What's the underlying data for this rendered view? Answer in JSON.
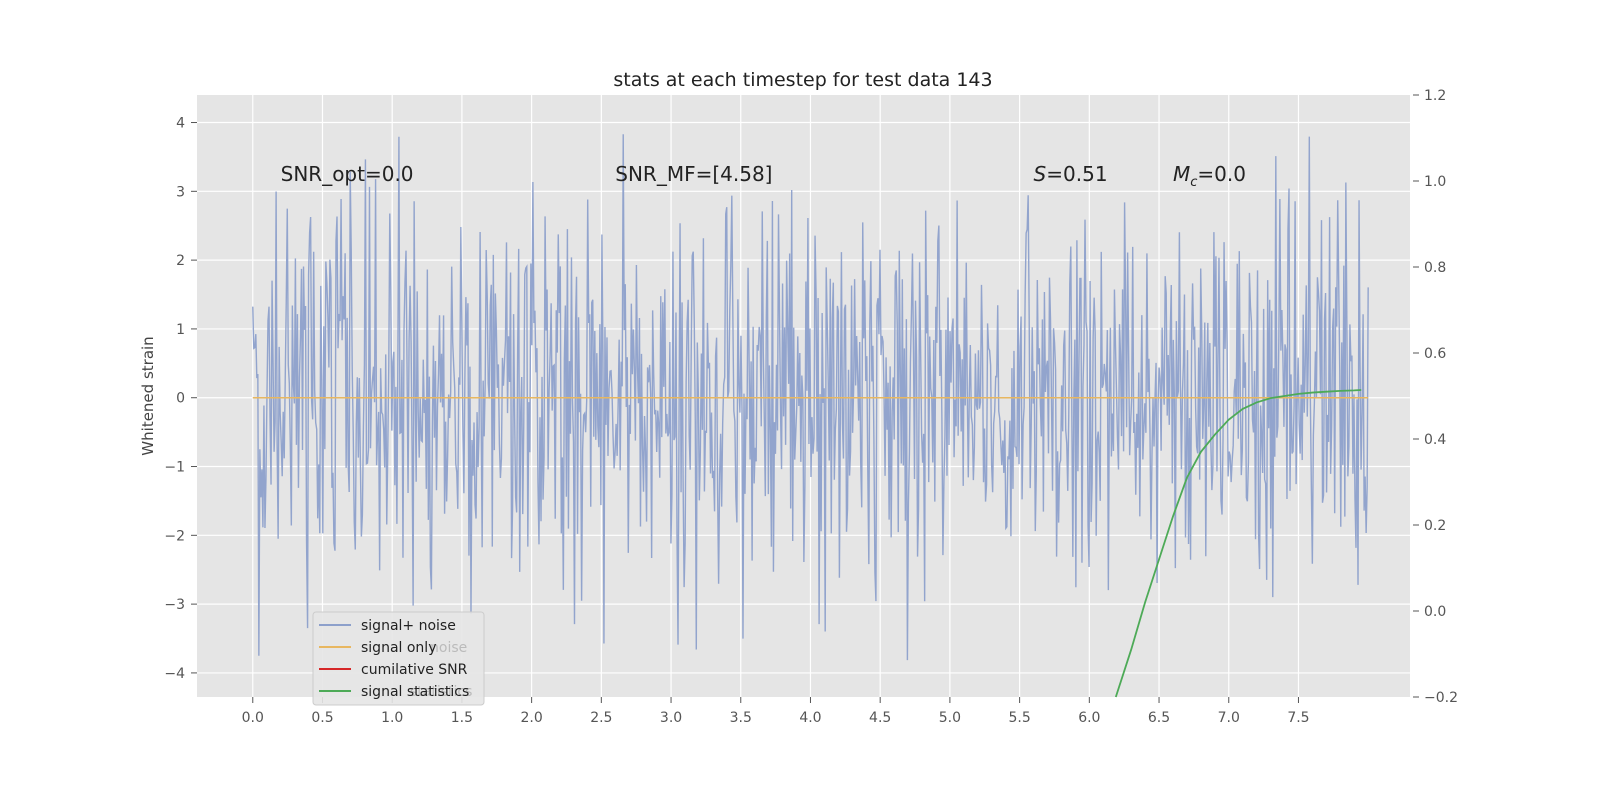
{
  "chart_data": {
    "type": "line",
    "title": "stats at each timestep for test data 143",
    "xlabel": "",
    "ylabel": "Whitened strain",
    "y2label": "",
    "xlim": [
      -0.4,
      8.3
    ],
    "ylim": [
      -4.35,
      4.4
    ],
    "y2lim": [
      -0.2,
      1.2
    ],
    "x_ticks": [
      0.0,
      0.5,
      1.0,
      1.5,
      2.0,
      2.5,
      3.0,
      3.5,
      4.0,
      4.5,
      5.0,
      5.5,
      6.0,
      6.5,
      7.0,
      7.5
    ],
    "y_ticks": [
      4,
      3,
      2,
      1,
      0,
      -1,
      -2,
      -3,
      -4
    ],
    "y2_ticks": [
      1.2,
      1.0,
      0.8,
      0.6,
      0.4,
      0.2,
      0.0,
      -0.2
    ],
    "grid": true,
    "legend_position": "lower-left",
    "series": [
      {
        "name": "signal+ noise",
        "axis": "left",
        "color": "#8da0cb",
        "kind": "noise",
        "x_range": [
          0.0,
          8.0
        ],
        "sample_count": 1100,
        "std": 1.0,
        "peak_max": 4.0,
        "peak_min": -3.98
      },
      {
        "name": "signal only",
        "axis": "left",
        "color": "#e8b760",
        "x": [
          0.0,
          8.0
        ],
        "y": [
          0.0,
          0.0
        ]
      },
      {
        "name": "cumilative SNR",
        "axis": "right",
        "color": "#d62728",
        "x": [],
        "y": []
      },
      {
        "name": "signal statistics",
        "axis": "right",
        "color": "#4daa57",
        "x": [
          6.19,
          6.3,
          6.4,
          6.5,
          6.6,
          6.7,
          6.8,
          6.9,
          7.0,
          7.1,
          7.2,
          7.3,
          7.4,
          7.5,
          7.6,
          7.7,
          7.8,
          7.9,
          7.95
        ],
        "y": [
          -0.2,
          -0.09,
          0.02,
          0.12,
          0.22,
          0.31,
          0.37,
          0.41,
          0.445,
          0.47,
          0.485,
          0.495,
          0.5,
          0.505,
          0.508,
          0.51,
          0.512,
          0.513,
          0.514
        ]
      }
    ],
    "annotations": [
      {
        "text": "SNR_opt=0.0",
        "x": 0.2,
        "y": 3.25
      },
      {
        "text": "SNR_MF=[4.58]",
        "x": 2.6,
        "y": 3.25
      },
      {
        "text": "S=0.51",
        "x": 5.6,
        "y": 3.25
      },
      {
        "text": "M_c=0.0",
        "x": 6.6,
        "y": 3.25
      }
    ],
    "legend_ghost_text": [
      "noise",
      "statistics"
    ]
  }
}
